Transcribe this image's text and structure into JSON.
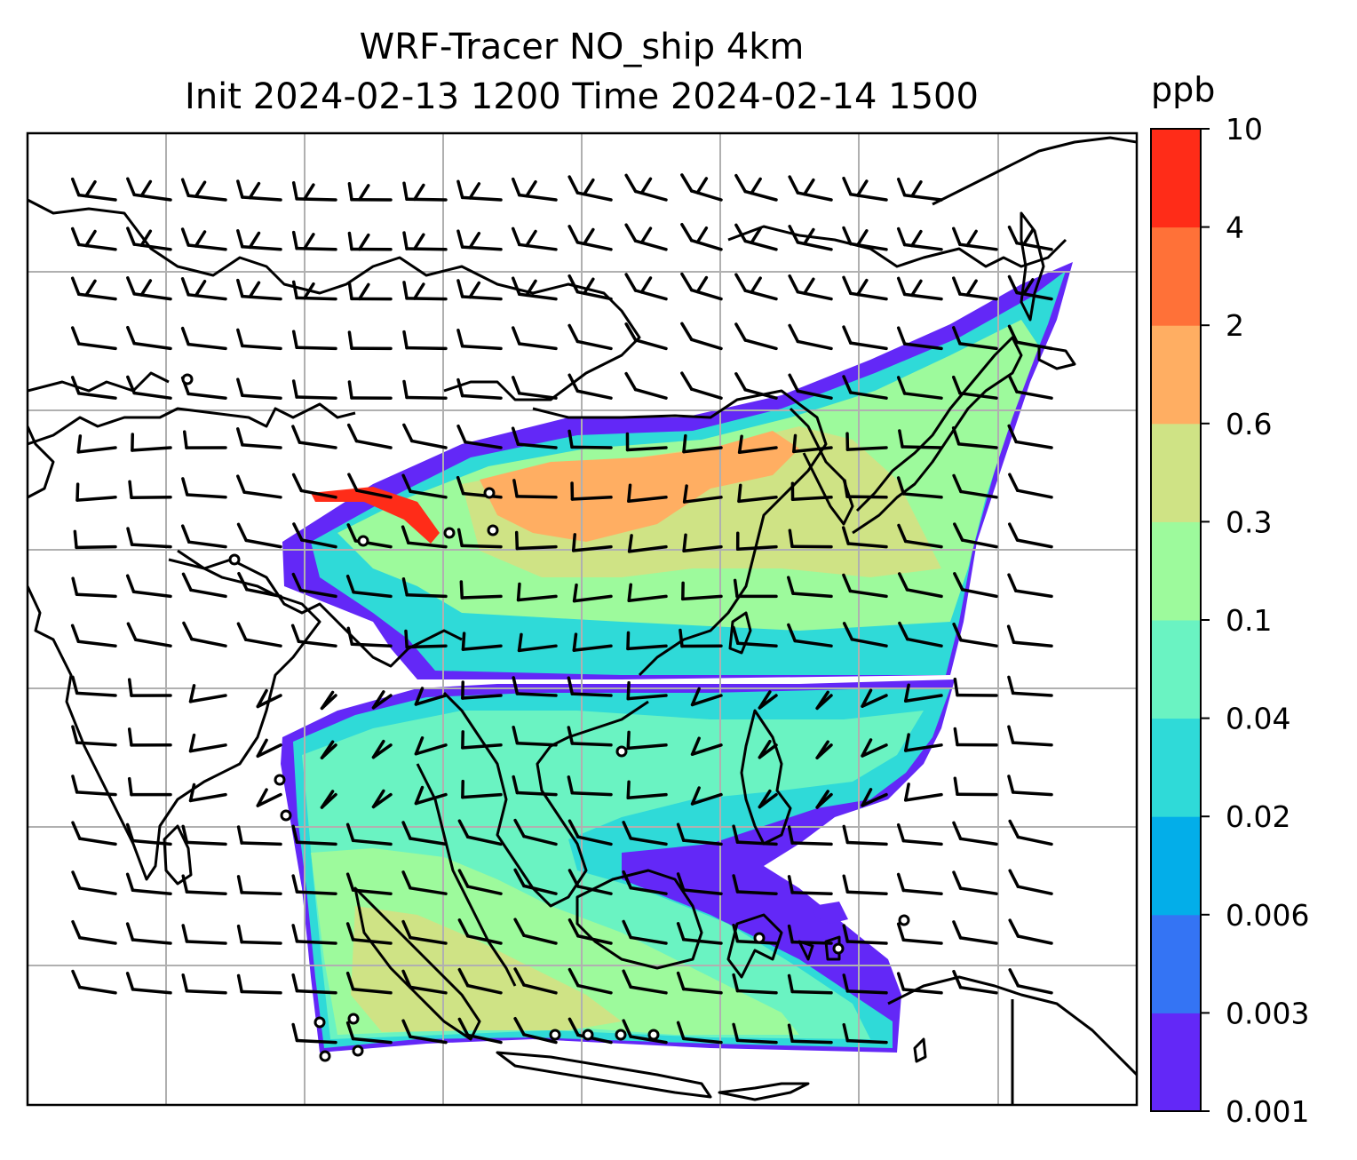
{
  "title": {
    "line1": "WRF-Tracer NO_ship 4km",
    "line2": "Init 2024-02-13 1200 Time 2024-02-14 1500"
  },
  "colorbar": {
    "unit": "ppb",
    "levels": [
      "0.001",
      "0.003",
      "0.006",
      "0.02",
      "0.04",
      "0.1",
      "0.3",
      "0.6",
      "2",
      "4",
      "10"
    ],
    "colors": [
      "#6328f7",
      "#3474f4",
      "#03aee9",
      "#2fdad8",
      "#6af3c2",
      "#9dfa9c",
      "#cfe385",
      "#ffae62",
      "#ff7138",
      "#ff2c18"
    ]
  },
  "map": {
    "coastline_color": "#000000",
    "gridline_color": "#b0b0b0",
    "wind_barb_color": "#000000"
  }
}
